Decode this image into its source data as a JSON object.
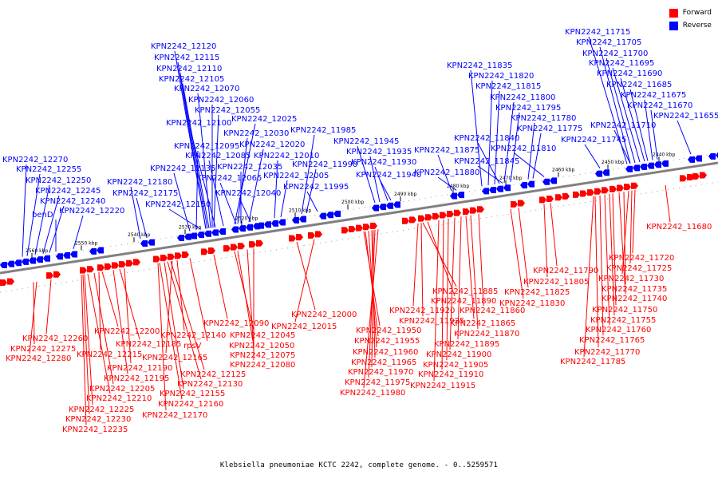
{
  "legend": {
    "forward_label": "Forward",
    "reverse_label": "Reverse",
    "forward_color": "#ff0000",
    "reverse_color": "#0000ff"
  },
  "caption": "Klebsiella pneumoniae KCTC 2242, complete genome. - 0..5259571",
  "colors": {
    "forward": "#ff0000",
    "reverse": "#0000ff",
    "backbone": "#808080",
    "tick": "#000000"
  },
  "ticks": [
    "2560 kbp",
    "2550 kbp",
    "2540 kbp",
    "2530 kbp",
    "2520 kbp",
    "2510 kbp",
    "2500 kbp",
    "2490 kbp",
    "2480 kbp",
    "2470 kbp",
    "2460 kbp",
    "2450 kbp",
    "2440 kbp"
  ],
  "reverse_labels": [
    "KPN2242_12120",
    "KPN2242_12115",
    "KPN2242_12110",
    "KPN2242_12105",
    "KPN2242_12070",
    "KPN2242_12060",
    "KPN2242_12055",
    "KPN2242_12100",
    "KPN2242_12025",
    "KPN2242_12030",
    "KPN2242_11985",
    "KPN2242_12020",
    "KPN2242_12095",
    "KPN2242_12085",
    "KPN2242_12010",
    "KPN2242_12135",
    "KPN2242_12035",
    "KPN2242_11990",
    "KPN2242_12065",
    "KPN2242_12005",
    "KPN2242_12040",
    "KPN2242_11995",
    "KPN2242_12150",
    "KPN2242_12270",
    "KPN2242_12255",
    "KPN2242_12250",
    "KPN2242_12245",
    "KPN2242_12240",
    "benD",
    "KPN2242_12220",
    "KPN2242_12180",
    "KPN2242_12175",
    "KPN2242_11945",
    "KPN2242_11935",
    "KPN2242_11930",
    "KPN2242_11940",
    "KPN2242_11835",
    "KPN2242_11820",
    "KPN2242_11815",
    "KPN2242_11800",
    "KPN2242_11795",
    "KPN2242_11780",
    "KPN2242_11775",
    "KPN2242_11840",
    "KPN2242_11875",
    "KPN2242_11810",
    "KPN2242_11845",
    "KPN2242_11880",
    "KPN2242_11745",
    "KPN2242_11715",
    "KPN2242_11705",
    "KPN2242_11700",
    "KPN2242_11695",
    "KPN2242_11690",
    "KPN2242_11685",
    "KPN2242_11675",
    "KPN2242_11670",
    "KPN2242_11655",
    "KPN2242_11710"
  ],
  "forward_labels": [
    "KPN2242_12260",
    "KPN2242_12275",
    "KPN2242_12280",
    "KPN2242_12200",
    "KPN2242_12215",
    "KPN2242_12185",
    "KPN2242_12190",
    "KPN2242_12195",
    "KPN2242_12205",
    "KPN2242_12210",
    "KPN2242_12225",
    "KPN2242_12230",
    "KPN2242_12235",
    "rpsV",
    "KPN2242_12140",
    "KPN2242_12165",
    "KPN2242_12125",
    "KPN2242_12130",
    "KPN2242_12155",
    "KPN2242_12160",
    "KPN2242_12170",
    "KPN2242_12090",
    "KPN2242_12045",
    "KPN2242_12050",
    "KPN2242_12075",
    "KPN2242_12080",
    "KPN2242_12000",
    "KPN2242_12015",
    "KPN2242_11950",
    "KPN2242_11955",
    "KPN2242_11960",
    "KPN2242_11965",
    "KPN2242_11970",
    "KPN2242_11975",
    "KPN2242_11980",
    "KPN2242_11885",
    "KPN2242_11890",
    "KPN2242_11920",
    "KPN2242_11925",
    "KPN2242_11865",
    "KPN2242_11860",
    "KPN2242_11870",
    "KPN2242_11895",
    "KPN2242_11900",
    "KPN2242_11905",
    "KPN2242_11910",
    "KPN2242_11915",
    "KPN2242_11790",
    "KPN2242_11805",
    "KPN2242_11825",
    "KPN2242_11830",
    "KPN2242_11720",
    "KPN2242_11725",
    "KPN2242_11730",
    "KPN2242_11735",
    "KPN2242_11740",
    "KPN2242_11750",
    "KPN2242_11755",
    "KPN2242_11760",
    "KPN2242_11765",
    "KPN2242_11770",
    "KPN2242_11785",
    "KPN2242_11680"
  ]
}
